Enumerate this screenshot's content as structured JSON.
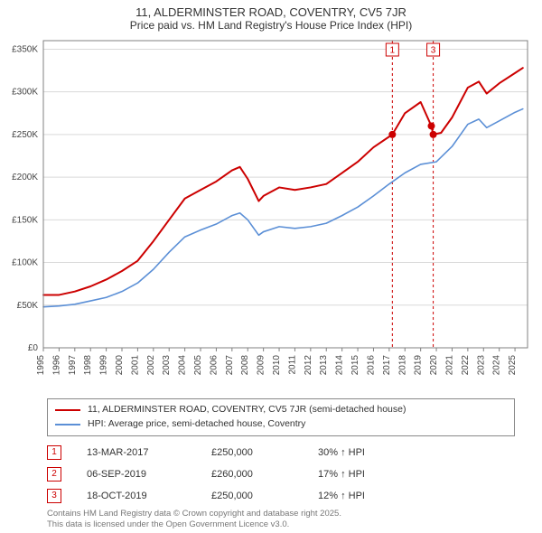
{
  "title_line1": "11, ALDERMINSTER ROAD, COVENTRY, CV5 7JR",
  "title_line2": "Price paid vs. HM Land Registry's House Price Index (HPI)",
  "chart": {
    "type": "line",
    "background_color": "#ffffff",
    "plot_border_color": "#808080",
    "grid_color": "#d9d9d9",
    "x": {
      "min": 1995,
      "max": 2025.8,
      "ticks": [
        1995,
        1996,
        1997,
        1998,
        1999,
        2000,
        2001,
        2002,
        2003,
        2004,
        2005,
        2006,
        2007,
        2008,
        2009,
        2010,
        2011,
        2012,
        2013,
        2014,
        2015,
        2016,
        2017,
        2018,
        2019,
        2020,
        2021,
        2022,
        2023,
        2024,
        2025
      ],
      "tick_labels": [
        "1995",
        "1996",
        "1997",
        "1998",
        "1999",
        "2000",
        "2001",
        "2002",
        "2003",
        "2004",
        "2005",
        "2006",
        "2007",
        "2008",
        "2009",
        "2010",
        "2011",
        "2012",
        "2013",
        "2014",
        "2015",
        "2016",
        "2017",
        "2018",
        "2019",
        "2020",
        "2021",
        "2022",
        "2023",
        "2024",
        "2025"
      ],
      "tick_fontsize": 10,
      "tick_rotation": -90,
      "tick_color": "#444444"
    },
    "y": {
      "min": 0,
      "max": 360000,
      "ticks": [
        0,
        50000,
        100000,
        150000,
        200000,
        250000,
        300000,
        350000
      ],
      "tick_labels": [
        "£0",
        "£50K",
        "£100K",
        "£150K",
        "£200K",
        "£250K",
        "£300K",
        "£350K"
      ],
      "tick_fontsize": 10,
      "tick_color": "#444444"
    },
    "series": [
      {
        "id": "subject",
        "label": "11, ALDERMINSTER ROAD, COVENTRY, CV5 7JR (semi-detached house)",
        "color": "#cc0000",
        "line_width": 2,
        "points": [
          [
            1995,
            62000
          ],
          [
            1996,
            62000
          ],
          [
            1997,
            66000
          ],
          [
            1998,
            72000
          ],
          [
            1999,
            80000
          ],
          [
            2000,
            90000
          ],
          [
            2001,
            102000
          ],
          [
            2002,
            125000
          ],
          [
            2003,
            150000
          ],
          [
            2004,
            175000
          ],
          [
            2005,
            185000
          ],
          [
            2006,
            195000
          ],
          [
            2007,
            208000
          ],
          [
            2007.5,
            212000
          ],
          [
            2008,
            198000
          ],
          [
            2008.7,
            172000
          ],
          [
            2009,
            178000
          ],
          [
            2010,
            188000
          ],
          [
            2011,
            185000
          ],
          [
            2012,
            188000
          ],
          [
            2013,
            192000
          ],
          [
            2014,
            205000
          ],
          [
            2015,
            218000
          ],
          [
            2016,
            235000
          ],
          [
            2017.2,
            250000
          ],
          [
            2018,
            275000
          ],
          [
            2019,
            288000
          ],
          [
            2019.68,
            260000
          ],
          [
            2019.8,
            250000
          ],
          [
            2020.3,
            252000
          ],
          [
            2021,
            270000
          ],
          [
            2022,
            305000
          ],
          [
            2022.7,
            312000
          ],
          [
            2023.2,
            298000
          ],
          [
            2024,
            310000
          ],
          [
            2025,
            322000
          ],
          [
            2025.5,
            328000
          ]
        ]
      },
      {
        "id": "hpi",
        "label": "HPI: Average price, semi-detached house, Coventry",
        "color": "#5b8fd6",
        "line_width": 1.6,
        "points": [
          [
            1995,
            48000
          ],
          [
            1996,
            49000
          ],
          [
            1997,
            51000
          ],
          [
            1998,
            55000
          ],
          [
            1999,
            59000
          ],
          [
            2000,
            66000
          ],
          [
            2001,
            76000
          ],
          [
            2002,
            92000
          ],
          [
            2003,
            112000
          ],
          [
            2004,
            130000
          ],
          [
            2005,
            138000
          ],
          [
            2006,
            145000
          ],
          [
            2007,
            155000
          ],
          [
            2007.5,
            158000
          ],
          [
            2008,
            150000
          ],
          [
            2008.7,
            132000
          ],
          [
            2009,
            136000
          ],
          [
            2010,
            142000
          ],
          [
            2011,
            140000
          ],
          [
            2012,
            142000
          ],
          [
            2013,
            146000
          ],
          [
            2014,
            155000
          ],
          [
            2015,
            165000
          ],
          [
            2016,
            178000
          ],
          [
            2017,
            192000
          ],
          [
            2018,
            205000
          ],
          [
            2019,
            215000
          ],
          [
            2020,
            218000
          ],
          [
            2021,
            236000
          ],
          [
            2022,
            262000
          ],
          [
            2022.7,
            268000
          ],
          [
            2023.2,
            258000
          ],
          [
            2024,
            266000
          ],
          [
            2025,
            276000
          ],
          [
            2025.5,
            280000
          ]
        ]
      }
    ],
    "sale_markers": {
      "color": "#cc0000",
      "radius": 4,
      "points": [
        {
          "n": "1",
          "x": 2017.2,
          "y": 250000
        },
        {
          "n": "2",
          "x": 2019.68,
          "y": 260000
        },
        {
          "n": "3",
          "x": 2019.8,
          "y": 250000
        }
      ]
    },
    "callouts": {
      "line_color": "#cc0000",
      "line_dash": "3,3",
      "box_border": "#cc0000",
      "box_bg": "#ffffff",
      "text_color": "#cc0000",
      "fontsize": 10,
      "items": [
        {
          "n": "1",
          "x": 2017.2
        },
        {
          "n": "3",
          "x": 2019.8
        }
      ],
      "hidden_behind": "2"
    }
  },
  "legend": {
    "border_color": "#888888",
    "rows": [
      {
        "color": "#cc0000",
        "label": "11, ALDERMINSTER ROAD, COVENTRY, CV5 7JR (semi-detached house)"
      },
      {
        "color": "#5b8fd6",
        "label": "HPI: Average price, semi-detached house, Coventry"
      }
    ]
  },
  "events": {
    "badge_border": "#cc0000",
    "badge_text_color": "#cc0000",
    "rows": [
      {
        "n": "1",
        "date": "13-MAR-2017",
        "price": "£250,000",
        "delta": "30% ↑ HPI"
      },
      {
        "n": "2",
        "date": "06-SEP-2019",
        "price": "£260,000",
        "delta": "17% ↑ HPI"
      },
      {
        "n": "3",
        "date": "18-OCT-2019",
        "price": "£250,000",
        "delta": "12% ↑ HPI"
      }
    ]
  },
  "footer": {
    "line1": "Contains HM Land Registry data © Crown copyright and database right 2025.",
    "line2": "This data is licensed under the Open Government Licence v3.0."
  }
}
